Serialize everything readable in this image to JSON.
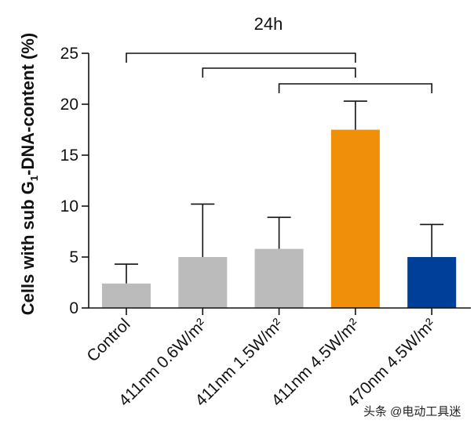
{
  "chart_data": {
    "type": "bar",
    "title": "24h",
    "ylabel_parts": [
      "Cells with sub G",
      "1",
      "-DNA-content (%)"
    ],
    "xlabel": "",
    "categories": [
      "Control",
      "411nm 0.6W/m²",
      "411nm 1.5W/m²",
      "411nm 4.5W/m²",
      "470nm 4.5W/m²"
    ],
    "values": [
      2.4,
      5.0,
      5.8,
      17.5,
      5.0
    ],
    "errors": [
      1.9,
      5.2,
      3.1,
      2.8,
      3.2
    ],
    "colors": [
      "#bbbbbb",
      "#bbbbbb",
      "#bbbbbb",
      "#f0900a",
      "#003f99"
    ],
    "ylim": [
      0,
      25
    ],
    "yticks": [
      0,
      5,
      10,
      15,
      20,
      25
    ],
    "significance_brackets": [
      {
        "from": 0,
        "to": 3
      },
      {
        "from": 1,
        "to": 3
      },
      {
        "from": 2,
        "to": 4
      }
    ]
  },
  "watermark": "头条 @电动工具迷"
}
